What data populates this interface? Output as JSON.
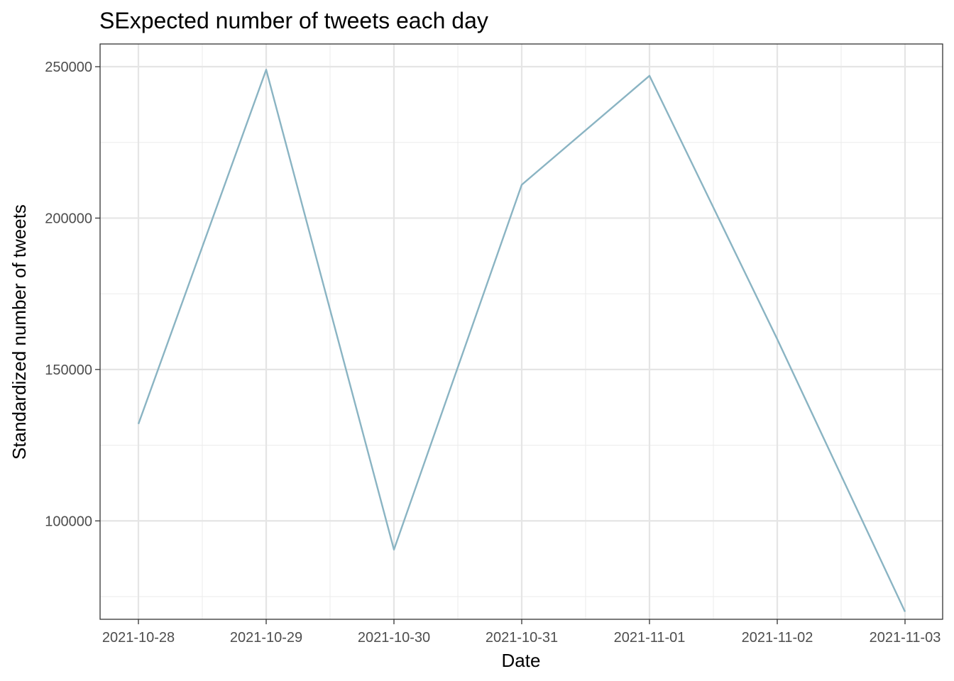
{
  "chart_data": {
    "type": "line",
    "title": "SExpected number of tweets each day",
    "xlabel": "Date",
    "ylabel": "Standardized number of tweets",
    "x": [
      "2021-10-28",
      "2021-10-29",
      "2021-10-30",
      "2021-10-31",
      "2021-11-01",
      "2021-11-02",
      "2021-11-03"
    ],
    "x_tick_labels": [
      "2021-10-28",
      "2021-10-29",
      "2021-10-30",
      "2021-10-31",
      "2021-11-01",
      "2021-11-02",
      "2021-11-03"
    ],
    "y_ticks": [
      100000,
      150000,
      200000,
      250000
    ],
    "y_tick_labels": [
      "100000",
      "150000",
      "200000",
      "250000"
    ],
    "ylim": [
      67500,
      257500
    ],
    "grid": true,
    "theme": "black-and-white",
    "series": [
      {
        "color": "#8AB4C3",
        "values": [
          132000,
          249000,
          90500,
          211000,
          247000,
          160000,
          70000
        ]
      }
    ]
  }
}
